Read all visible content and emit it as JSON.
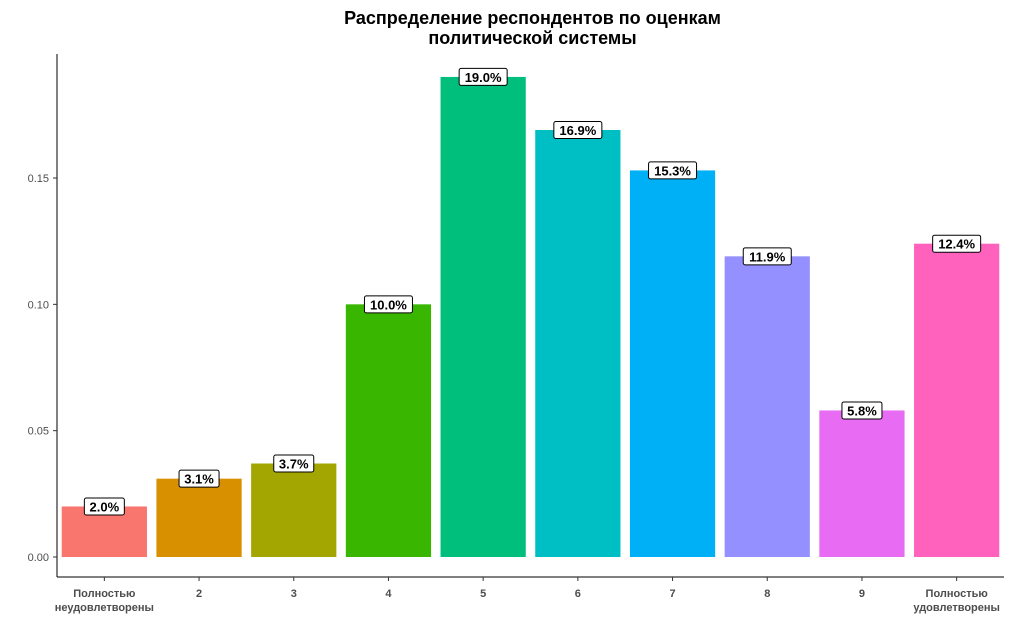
{
  "chart_data": {
    "type": "bar",
    "title": [
      "Распределение респондентов по оценкам",
      "политической системы"
    ],
    "xlabel": "",
    "ylabel": "",
    "categories": [
      [
        "Полностью",
        "неудовлетворены"
      ],
      [
        "2"
      ],
      [
        "3"
      ],
      [
        "4"
      ],
      [
        "5"
      ],
      [
        "6"
      ],
      [
        "7"
      ],
      [
        "8"
      ],
      [
        "9"
      ],
      [
        "Полностью",
        "удовлетворены"
      ]
    ],
    "values": [
      0.02,
      0.031,
      0.037,
      0.1,
      0.19,
      0.169,
      0.153,
      0.119,
      0.058,
      0.124
    ],
    "data_labels": [
      "2.0%",
      "3.1%",
      "3.7%",
      "10.0%",
      "19.0%",
      "16.9%",
      "15.3%",
      "11.9%",
      "5.8%",
      "12.4%"
    ],
    "colors": [
      "#F8766D",
      "#D89000",
      "#A3A500",
      "#39B600",
      "#00BF7D",
      "#00BFC4",
      "#00B0F6",
      "#9590FF",
      "#E76BF3",
      "#FF62BC"
    ],
    "yticks": [
      0.0,
      0.05,
      0.1,
      0.15
    ],
    "ytick_labels": [
      "0.00",
      "0.05",
      "0.10",
      "0.15"
    ],
    "ylim": [
      0,
      0.198
    ],
    "grid": false,
    "legend": "none"
  }
}
